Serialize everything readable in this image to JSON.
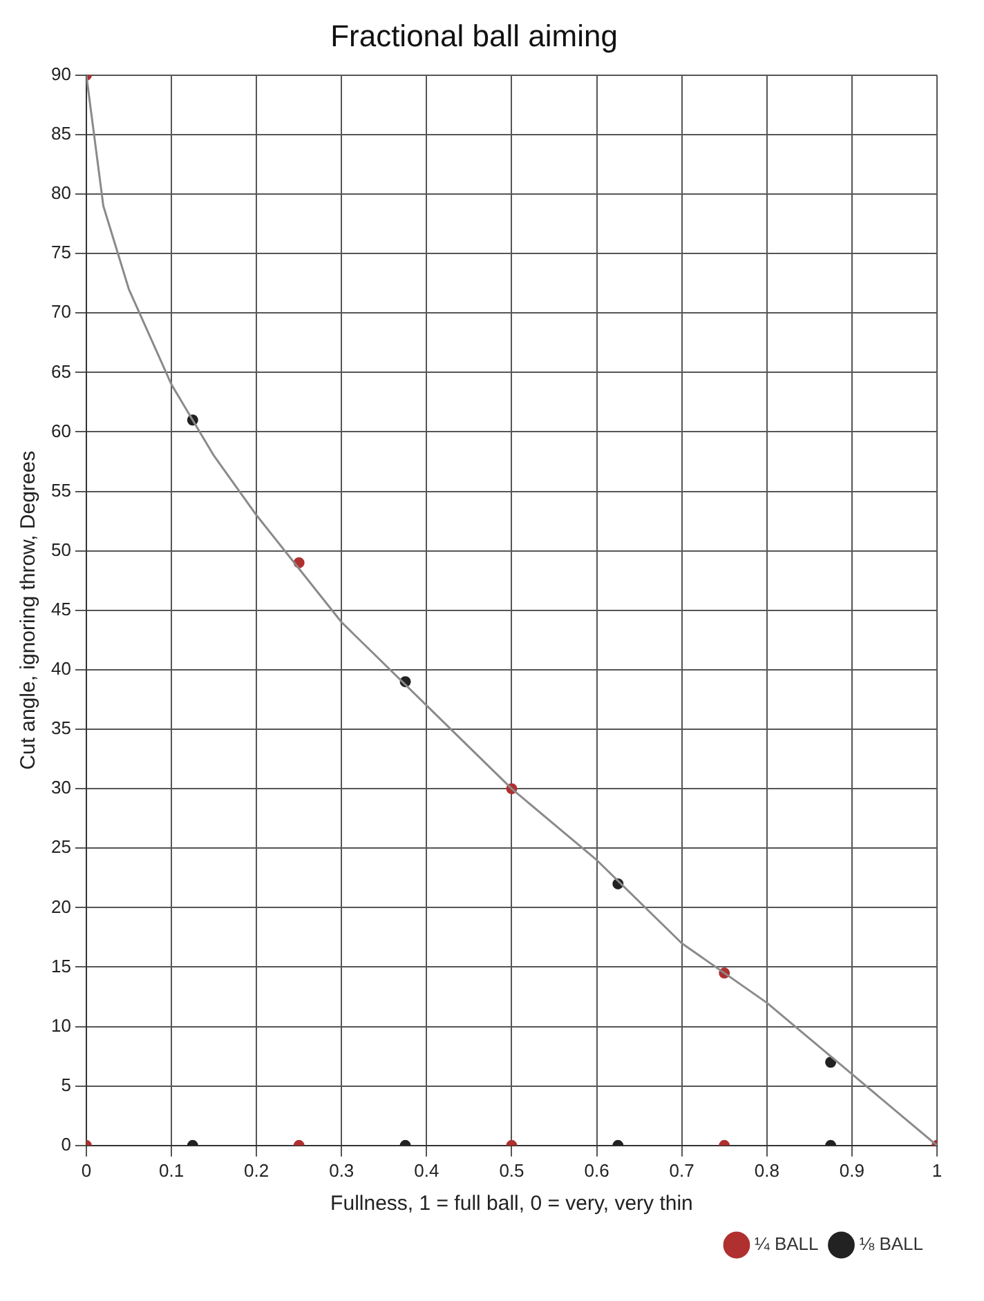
{
  "chart_data": {
    "type": "scatter",
    "title": "Fractional ball aiming",
    "xlabel": "Fullness, 1 = full ball, 0 = very, very thin",
    "ylabel": "Cut angle, ignoring throw, Degrees",
    "xlim": [
      0,
      1
    ],
    "xticks": [
      0,
      0.1,
      0.2,
      0.3,
      0.4,
      0.5,
      0.6,
      0.7,
      0.8,
      0.9,
      1
    ],
    "ylim": [
      0,
      90
    ],
    "yticks": [
      0,
      5,
      10,
      15,
      20,
      25,
      30,
      35,
      40,
      45,
      50,
      55,
      60,
      65,
      70,
      75,
      80,
      85,
      90
    ],
    "grid": true,
    "legend": "bottom right",
    "marker": "circle",
    "series": [
      {
        "type": "line",
        "color": "#8a8a8a",
        "line_style": "solid",
        "marker": "none",
        "x": [
          0,
          0.02,
          0.05,
          0.1,
          0.15,
          0.2,
          0.3,
          0.4,
          0.5,
          0.6,
          0.7,
          0.8,
          0.9,
          1
        ],
        "values": [
          90,
          79,
          72,
          64,
          58,
          53,
          44,
          37,
          30,
          24,
          17,
          12,
          6,
          0
        ]
      },
      {
        "name": "¼ BALL",
        "color": "#b03030",
        "x": [
          0,
          0.25,
          0.5,
          0.75,
          1,
          0,
          0.25,
          0.5,
          0.75
        ],
        "values": [
          90,
          49,
          30,
          14.5,
          0,
          0,
          0,
          0,
          0
        ]
      },
      {
        "name": "⅛ BALL",
        "color": "#222222",
        "x": [
          0.125,
          0.375,
          0.625,
          0.875,
          0.125,
          0.375,
          0.625,
          0.875
        ],
        "values": [
          61,
          39,
          22,
          7,
          0,
          0,
          0,
          0
        ]
      }
    ]
  }
}
